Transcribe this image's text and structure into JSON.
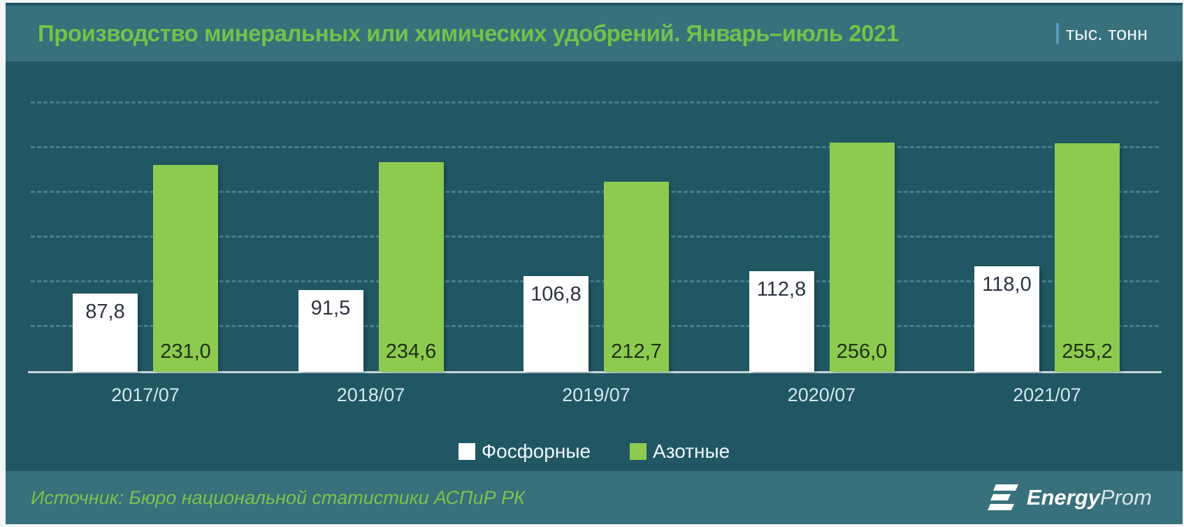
{
  "header": {
    "title": "Производство минеральных или химических удобрений. Январь–июль 2021",
    "unit_label": "тыс. тонн"
  },
  "chart_data": {
    "type": "bar",
    "title": "Производство минеральных или химических удобрений. Январь–июль 2021",
    "unit": "тыс. тонн",
    "categories": [
      "2017/07",
      "2018/07",
      "2019/07",
      "2020/07",
      "2021/07"
    ],
    "series": [
      {
        "name": "Фосфорные",
        "color": "#ffffff",
        "label_position": "inside-top",
        "values": [
          87.8,
          91.5,
          106.8,
          112.8,
          118.0
        ]
      },
      {
        "name": "Азотные",
        "color": "#8dcb50",
        "label_position": "inside-base",
        "values": [
          231.0,
          234.6,
          212.7,
          256.0,
          255.2
        ]
      }
    ],
    "xlabel": "",
    "ylabel": "",
    "ylim": [
      0,
      300
    ],
    "grid_step": 50,
    "grid": "horizontal-dashed",
    "legend_position": "bottom",
    "decimal_separator": ","
  },
  "footer": {
    "source": "Источник: Бюро национальной статистики АСПиР РК",
    "logo_energy": "Energy",
    "logo_prom": "Prom"
  },
  "colors": {
    "title_green": "#74c14b",
    "bar_green": "#8dcb50",
    "bar_white": "#ffffff",
    "plot_background": "#215763",
    "header_background": "#38707b",
    "footer_background": "#38707b",
    "gridline": "#45808f",
    "axis_line": "#c9d6da",
    "unit_separator": "#5a9cbd",
    "source_green": "#7cc24e"
  }
}
